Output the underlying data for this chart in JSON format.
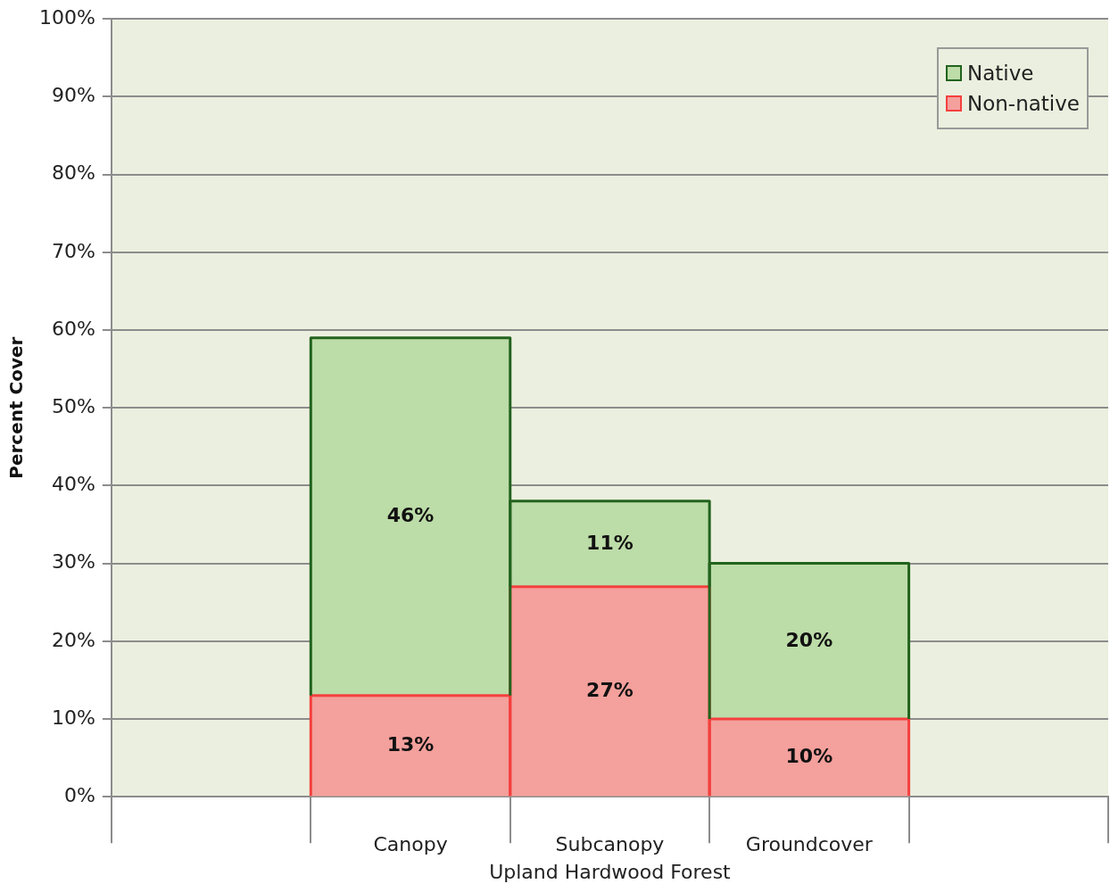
{
  "chart_data": {
    "type": "bar",
    "stacked": true,
    "categories": [
      null,
      "Canopy",
      "Subcanopy",
      "Groundcover",
      null
    ],
    "series": [
      {
        "name": "Non-native",
        "color": "#f4a09c",
        "values": [
          null,
          13,
          27,
          10,
          null
        ]
      },
      {
        "name": "Native",
        "color": "#bcdca8",
        "values": [
          null,
          46,
          11,
          20,
          null
        ]
      }
    ],
    "xlabel": "Upland Hardwood Forest",
    "ylabel": "Percent Cover",
    "ylim": [
      0,
      100
    ],
    "yticks": [
      {
        "value": 0,
        "label": "0%"
      },
      {
        "value": 10,
        "label": "10%"
      },
      {
        "value": 20,
        "label": "20%"
      },
      {
        "value": 30,
        "label": "30%"
      },
      {
        "value": 40,
        "label": "40%"
      },
      {
        "value": 50,
        "label": "50%"
      },
      {
        "value": 60,
        "label": "60%"
      },
      {
        "value": 70,
        "label": "70%"
      },
      {
        "value": 80,
        "label": "80%"
      },
      {
        "value": 90,
        "label": "90%"
      },
      {
        "value": 100,
        "label": "100%"
      }
    ],
    "grid": "y",
    "legend": "top right",
    "value_labels": [
      [
        null,
        "13%",
        "27%",
        "10%",
        null
      ],
      [
        null,
        "46%",
        "11%",
        "20%",
        null
      ]
    ]
  }
}
